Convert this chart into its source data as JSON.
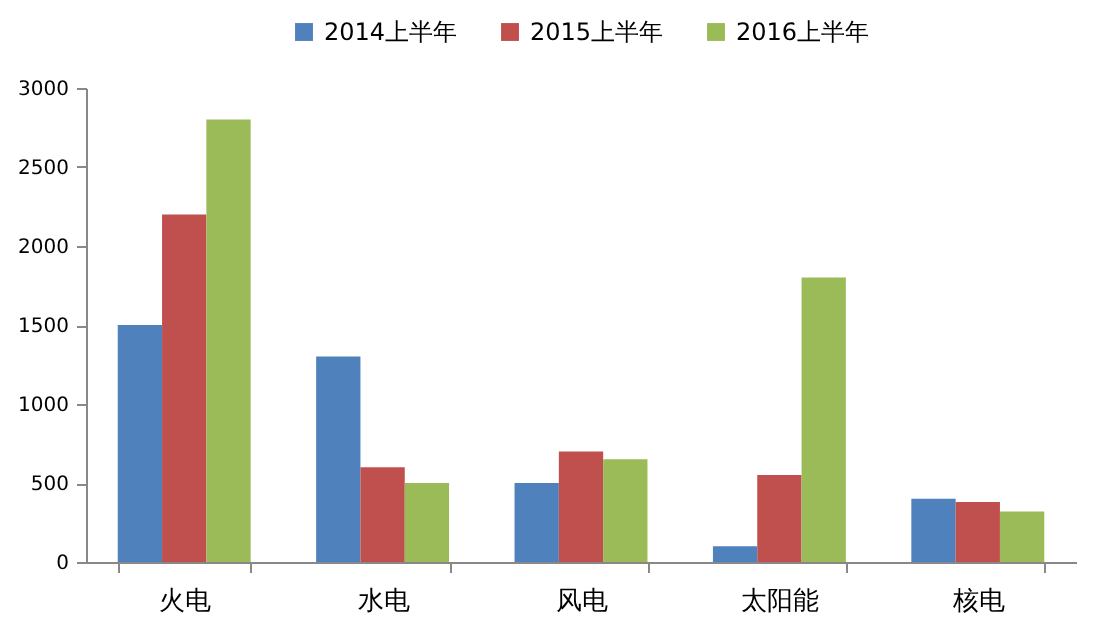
{
  "chart_data": {
    "type": "bar",
    "categories": [
      "火电",
      "水电",
      "风电",
      "太阳能",
      "核电"
    ],
    "series": [
      {
        "name": "2014上半年",
        "color": "#4f81bd",
        "values": [
          1500,
          1300,
          500,
          100,
          400
        ]
      },
      {
        "name": "2015上半年",
        "color": "#c0504d",
        "values": [
          2200,
          600,
          700,
          550,
          380
        ]
      },
      {
        "name": "2016上半年",
        "color": "#9bbb59",
        "values": [
          2800,
          500,
          650,
          1800,
          320
        ]
      }
    ],
    "ylim": [
      0,
      3000
    ],
    "yticks": [
      0,
      500,
      1000,
      1500,
      2000,
      2500,
      3000
    ],
    "grid": false,
    "legend": "top"
  }
}
